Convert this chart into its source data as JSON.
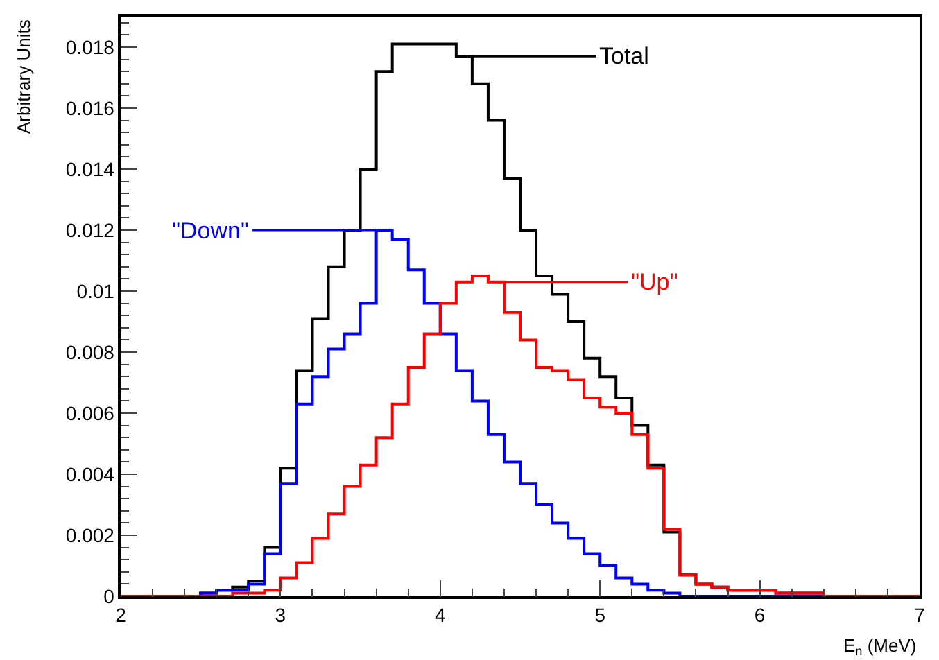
{
  "chart_data": {
    "type": "histogram",
    "xlabel": "E$_{n}$ (MeV)",
    "ylabel": "Arbitrary Units",
    "bins": [
      2.0,
      2.1,
      2.2,
      2.3,
      2.4,
      2.5,
      2.6,
      2.7,
      2.8,
      2.9,
      3.0,
      3.1,
      3.2,
      3.3,
      3.4,
      3.5,
      3.6,
      3.7,
      3.8,
      3.9,
      4.0,
      4.1,
      4.2,
      4.3,
      4.4,
      4.5,
      4.6,
      4.7,
      4.8,
      4.9,
      5.0,
      5.1,
      5.2,
      5.3,
      5.4,
      5.5,
      5.6,
      5.7,
      5.8,
      5.9,
      6.0,
      6.1,
      6.2,
      6.3,
      6.4,
      6.5,
      6.6,
      6.7,
      6.8,
      6.9,
      7.0
    ],
    "series": [
      {
        "name": "Total",
        "color": "#000000",
        "values": [
          0,
          0,
          0,
          0,
          0,
          0.0001,
          0.0002,
          0.0003,
          0.0005,
          0.0016,
          0.0042,
          0.0074,
          0.0091,
          0.0108,
          0.012,
          0.014,
          0.0172,
          0.0181,
          0.0181,
          0.0181,
          0.0181,
          0.0177,
          0.0168,
          0.0156,
          0.0137,
          0.012,
          0.0105,
          0.0099,
          0.009,
          0.0078,
          0.0072,
          0.0065,
          0.0056,
          0.0043,
          0.0021,
          0.0007,
          0.0004,
          0.0003,
          0.0002,
          0.0002,
          0.0002,
          0.0001,
          0.0001,
          0.0001,
          0,
          0,
          0,
          0,
          0,
          0
        ]
      },
      {
        "name": "\"Down\"",
        "color": "#0000ff",
        "values": [
          0,
          0,
          0,
          0,
          0,
          0.0001,
          0.0002,
          0.0002,
          0.0004,
          0.0014,
          0.0037,
          0.0063,
          0.0072,
          0.0081,
          0.0086,
          0.0096,
          0.012,
          0.0117,
          0.0107,
          0.0096,
          0.0086,
          0.0074,
          0.0064,
          0.0053,
          0.0044,
          0.0037,
          0.003,
          0.0024,
          0.0019,
          0.0014,
          0.001,
          0.0006,
          0.0004,
          0.0002,
          0.0001,
          0,
          0,
          0,
          0,
          0,
          0,
          0,
          0,
          0,
          0,
          0,
          0,
          0,
          0,
          0
        ]
      },
      {
        "name": "\"Up\"",
        "color": "#ff0000",
        "values": [
          0,
          0,
          0,
          0,
          0,
          0,
          0,
          0.0001,
          0.0001,
          0.0002,
          0.0006,
          0.0011,
          0.0019,
          0.0027,
          0.0036,
          0.0043,
          0.0052,
          0.0063,
          0.0075,
          0.0086,
          0.0096,
          0.0103,
          0.0105,
          0.0103,
          0.0093,
          0.0084,
          0.0075,
          0.0074,
          0.0071,
          0.0065,
          0.0062,
          0.006,
          0.0053,
          0.0042,
          0.0022,
          0.0007,
          0.0004,
          0.0003,
          0.0002,
          0.0002,
          0.0002,
          0.0001,
          0.0001,
          0.0001,
          0,
          0,
          0,
          0,
          0,
          0
        ]
      }
    ],
    "xlim": [
      2,
      7
    ],
    "xticks": [
      2,
      3,
      4,
      5,
      6,
      7
    ],
    "ylim": [
      0,
      0.019
    ],
    "yticks": [
      0,
      0.002,
      0.004,
      0.006,
      0.008,
      0.01,
      0.012,
      0.014,
      0.016,
      0.018
    ],
    "legend": false
  }
}
